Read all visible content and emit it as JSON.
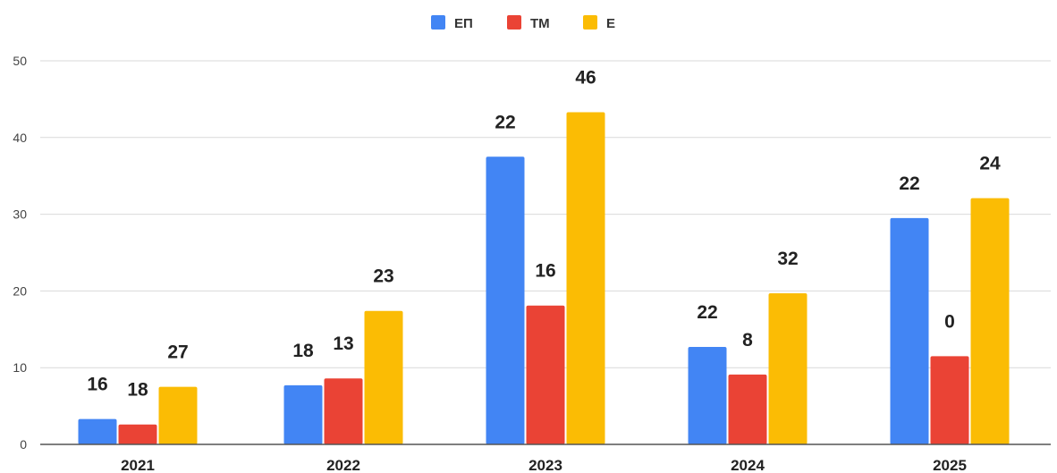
{
  "chart_data": {
    "type": "bar",
    "categories": [
      "2021",
      "2022",
      "2023",
      "2024",
      "2025"
    ],
    "series": [
      {
        "name": "ЕП",
        "color": "#4285F4",
        "values": [
          3.3,
          7.7,
          37.5,
          12.7,
          29.5
        ],
        "labels": [
          "16",
          "18",
          "22",
          "22",
          "22"
        ]
      },
      {
        "name": "ТМ",
        "color": "#EA4335",
        "values": [
          2.6,
          8.6,
          18.1,
          9.1,
          11.5
        ],
        "labels": [
          "18",
          "13",
          "16",
          "8",
          "0"
        ]
      },
      {
        "name": "Е",
        "color": "#FBBC04",
        "values": [
          7.5,
          17.4,
          43.3,
          19.7,
          32.1
        ],
        "labels": [
          "27",
          "23",
          "46",
          "32",
          "24"
        ]
      }
    ],
    "ylim": [
      0,
      50
    ],
    "yticks": [
      "0",
      "10",
      "20",
      "30",
      "40",
      "50"
    ],
    "grid": true,
    "legend_position": "top-center",
    "title": "",
    "xlabel": "",
    "ylabel": ""
  }
}
